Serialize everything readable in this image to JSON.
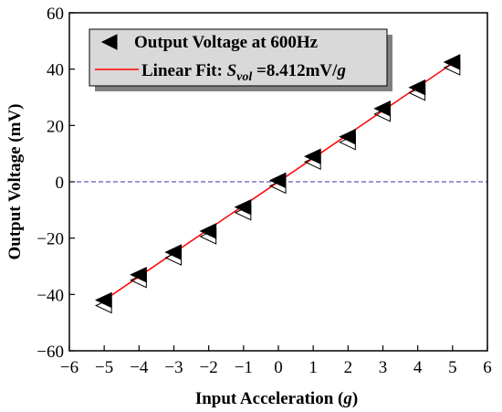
{
  "chart_data": {
    "type": "scatter",
    "title": "",
    "xlabel": "Input Acceleration",
    "xlabel_unit": "g",
    "ylabel": "Output Voltage (mV)",
    "xlim": [
      -6,
      6
    ],
    "ylim": [
      -60,
      60
    ],
    "xticks": [
      -6,
      -5,
      -4,
      -3,
      -2,
      -1,
      0,
      1,
      2,
      3,
      4,
      5,
      6
    ],
    "yticks": [
      -60,
      -40,
      -20,
      0,
      20,
      40,
      60
    ],
    "grid": false,
    "legend_position": "top-left",
    "zero_line": {
      "y": 0,
      "style": "dashed",
      "color": "#3333aa"
    },
    "series": [
      {
        "name": "Output Voltage at 600Hz",
        "kind": "scatter",
        "marker": "left-triangle",
        "x": [
          -5,
          -4,
          -3,
          -2,
          -1,
          0,
          1,
          2,
          3,
          4,
          5
        ],
        "y": [
          -42,
          -33,
          -25,
          -17.5,
          -9,
          0.5,
          9,
          16,
          26,
          33.5,
          42.5
        ]
      },
      {
        "name": "Linear Fit",
        "kind": "line",
        "color": "#ff0000",
        "x": [
          -5,
          5
        ],
        "y": [
          -42.06,
          42.06
        ]
      }
    ],
    "legend": {
      "marker_label": "Output Voltage at 600Hz",
      "fit_prefix": "Linear Fit: ",
      "fit_symbol_main": "S",
      "fit_symbol_sub": "vol",
      "fit_value": " =8.412mV/",
      "fit_unit": "g"
    }
  }
}
